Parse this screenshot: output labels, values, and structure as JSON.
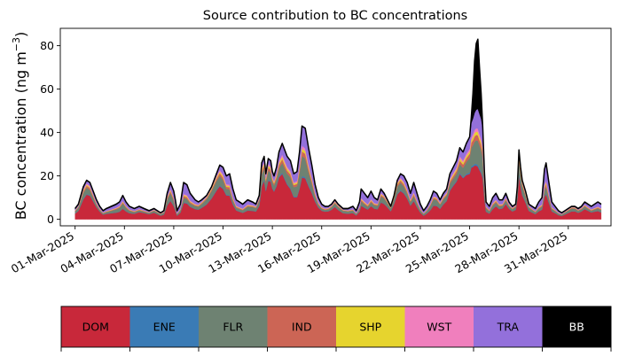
{
  "chart_data": {
    "type": "area",
    "stacked": true,
    "title": "Source contribution to BC concentrations",
    "xlabel": "",
    "ylabel": "BC concentration (ng m",
    "ylabel_sup": "−3",
    "ylabel_close": ")",
    "ylim": [
      -3,
      88
    ],
    "yticks": [
      0,
      20,
      40,
      60,
      80
    ],
    "grid": false,
    "x_ticks": [
      "01-Mar-2025",
      "04-Mar-2025",
      "07-Mar-2025",
      "10-Mar-2025",
      "13-Mar-2025",
      "16-Mar-2025",
      "19-Mar-2025",
      "22-Mar-2025",
      "25-Mar-2025",
      "28-Mar-2025",
      "31-Mar-2025"
    ],
    "x_tick_days": [
      0,
      3,
      6,
      9,
      12,
      15,
      18,
      21,
      24,
      27,
      30
    ],
    "x_range_days": [
      -0.9,
      32.6
    ],
    "legend_position": "bottom (color bar)",
    "series": [
      {
        "name": "DOM",
        "color": "#c8283a",
        "textcolor": "#000000"
      },
      {
        "name": "ENE",
        "color": "#3a7bb5",
        "textcolor": "#000000"
      },
      {
        "name": "FLR",
        "color": "#6e8272",
        "textcolor": "#000000"
      },
      {
        "name": "IND",
        "color": "#cc6555",
        "textcolor": "#000000"
      },
      {
        "name": "SHP",
        "color": "#e6d42e",
        "textcolor": "#000000"
      },
      {
        "name": "WST",
        "color": "#f07fbd",
        "textcolor": "#000000"
      },
      {
        "name": "TRA",
        "color": "#9370db",
        "textcolor": "#000000"
      },
      {
        "name": "BB",
        "color": "#000000",
        "textcolor": "#ffffff"
      }
    ],
    "total_profile": [
      [
        0,
        5
      ],
      [
        0.2,
        7
      ],
      [
        0.5,
        15
      ],
      [
        0.7,
        18
      ],
      [
        0.9,
        17
      ],
      [
        1.1,
        13
      ],
      [
        1.3,
        9
      ],
      [
        1.5,
        6
      ],
      [
        1.7,
        4
      ],
      [
        1.9,
        5
      ],
      [
        2.2,
        6
      ],
      [
        2.5,
        7
      ],
      [
        2.7,
        8
      ],
      [
        2.9,
        11
      ],
      [
        3.1,
        8
      ],
      [
        3.3,
        6
      ],
      [
        3.6,
        5
      ],
      [
        3.9,
        6
      ],
      [
        4.2,
        5
      ],
      [
        4.5,
        4
      ],
      [
        4.8,
        5
      ],
      [
        5.0,
        4
      ],
      [
        5.2,
        3
      ],
      [
        5.4,
        4
      ],
      [
        5.6,
        12
      ],
      [
        5.8,
        17
      ],
      [
        6.0,
        13
      ],
      [
        6.1,
        9
      ],
      [
        6.2,
        4
      ],
      [
        6.4,
        7
      ],
      [
        6.6,
        17
      ],
      [
        6.8,
        16
      ],
      [
        7.0,
        12
      ],
      [
        7.3,
        9
      ],
      [
        7.5,
        8
      ],
      [
        7.7,
        9
      ],
      [
        8.0,
        11
      ],
      [
        8.3,
        15
      ],
      [
        8.6,
        21
      ],
      [
        8.8,
        25
      ],
      [
        9.0,
        24
      ],
      [
        9.2,
        20
      ],
      [
        9.4,
        21
      ],
      [
        9.6,
        14
      ],
      [
        9.8,
        9
      ],
      [
        10.0,
        8
      ],
      [
        10.2,
        7
      ],
      [
        10.5,
        9
      ],
      [
        10.8,
        8
      ],
      [
        11.0,
        7
      ],
      [
        11.2,
        11
      ],
      [
        11.35,
        26
      ],
      [
        11.5,
        29
      ],
      [
        11.6,
        21
      ],
      [
        11.75,
        28
      ],
      [
        11.9,
        27
      ],
      [
        12.0,
        22
      ],
      [
        12.1,
        20
      ],
      [
        12.25,
        24
      ],
      [
        12.4,
        31
      ],
      [
        12.6,
        35
      ],
      [
        12.75,
        32
      ],
      [
        12.9,
        29
      ],
      [
        13.1,
        27
      ],
      [
        13.3,
        21
      ],
      [
        13.5,
        22
      ],
      [
        13.65,
        31
      ],
      [
        13.8,
        43
      ],
      [
        14.0,
        42
      ],
      [
        14.2,
        33
      ],
      [
        14.4,
        25
      ],
      [
        14.6,
        16
      ],
      [
        14.8,
        10
      ],
      [
        15.0,
        7
      ],
      [
        15.2,
        6
      ],
      [
        15.4,
        6
      ],
      [
        15.6,
        7
      ],
      [
        15.8,
        9
      ],
      [
        16.0,
        7
      ],
      [
        16.3,
        5
      ],
      [
        16.6,
        5
      ],
      [
        16.9,
        6
      ],
      [
        17.1,
        4
      ],
      [
        17.3,
        8
      ],
      [
        17.4,
        14
      ],
      [
        17.6,
        12
      ],
      [
        17.8,
        10
      ],
      [
        18.0,
        13
      ],
      [
        18.2,
        10
      ],
      [
        18.4,
        9
      ],
      [
        18.6,
        14
      ],
      [
        18.8,
        12
      ],
      [
        19.0,
        9
      ],
      [
        19.2,
        6
      ],
      [
        19.4,
        11
      ],
      [
        19.6,
        18
      ],
      [
        19.8,
        21
      ],
      [
        20.0,
        20
      ],
      [
        20.2,
        17
      ],
      [
        20.4,
        12
      ],
      [
        20.6,
        17
      ],
      [
        20.8,
        12
      ],
      [
        21.0,
        7
      ],
      [
        21.2,
        4
      ],
      [
        21.4,
        6
      ],
      [
        21.6,
        9
      ],
      [
        21.8,
        13
      ],
      [
        22.0,
        12
      ],
      [
        22.2,
        9
      ],
      [
        22.4,
        12
      ],
      [
        22.6,
        14
      ],
      [
        22.8,
        21
      ],
      [
        23.0,
        24
      ],
      [
        23.2,
        27
      ],
      [
        23.4,
        33
      ],
      [
        23.6,
        31
      ],
      [
        23.8,
        35
      ],
      [
        24.0,
        38
      ],
      [
        24.1,
        47
      ],
      [
        24.2,
        58
      ],
      [
        24.3,
        73
      ],
      [
        24.4,
        81
      ],
      [
        24.5,
        83
      ],
      [
        24.6,
        70
      ],
      [
        24.7,
        58
      ],
      [
        24.8,
        42
      ],
      [
        24.9,
        22
      ],
      [
        25.0,
        8
      ],
      [
        25.2,
        6
      ],
      [
        25.4,
        10
      ],
      [
        25.6,
        12
      ],
      [
        25.8,
        9
      ],
      [
        26.0,
        9
      ],
      [
        26.2,
        12
      ],
      [
        26.4,
        8
      ],
      [
        26.6,
        6
      ],
      [
        26.8,
        7
      ],
      [
        26.9,
        15
      ],
      [
        27.0,
        32
      ],
      [
        27.1,
        24
      ],
      [
        27.2,
        18
      ],
      [
        27.4,
        13
      ],
      [
        27.6,
        7
      ],
      [
        27.8,
        6
      ],
      [
        28.0,
        5
      ],
      [
        28.2,
        8
      ],
      [
        28.4,
        10
      ],
      [
        28.55,
        23
      ],
      [
        28.65,
        26
      ],
      [
        28.8,
        18
      ],
      [
        29.0,
        8
      ],
      [
        29.2,
        6
      ],
      [
        29.4,
        4
      ],
      [
        29.6,
        3
      ],
      [
        29.8,
        4
      ],
      [
        30.0,
        5
      ],
      [
        30.2,
        6
      ],
      [
        30.4,
        6
      ],
      [
        30.6,
        5
      ],
      [
        30.8,
        6
      ],
      [
        31.0,
        8
      ],
      [
        31.2,
        7
      ],
      [
        31.4,
        6
      ],
      [
        31.6,
        7
      ],
      [
        31.8,
        8
      ],
      [
        32.0,
        7
      ]
    ]
  }
}
